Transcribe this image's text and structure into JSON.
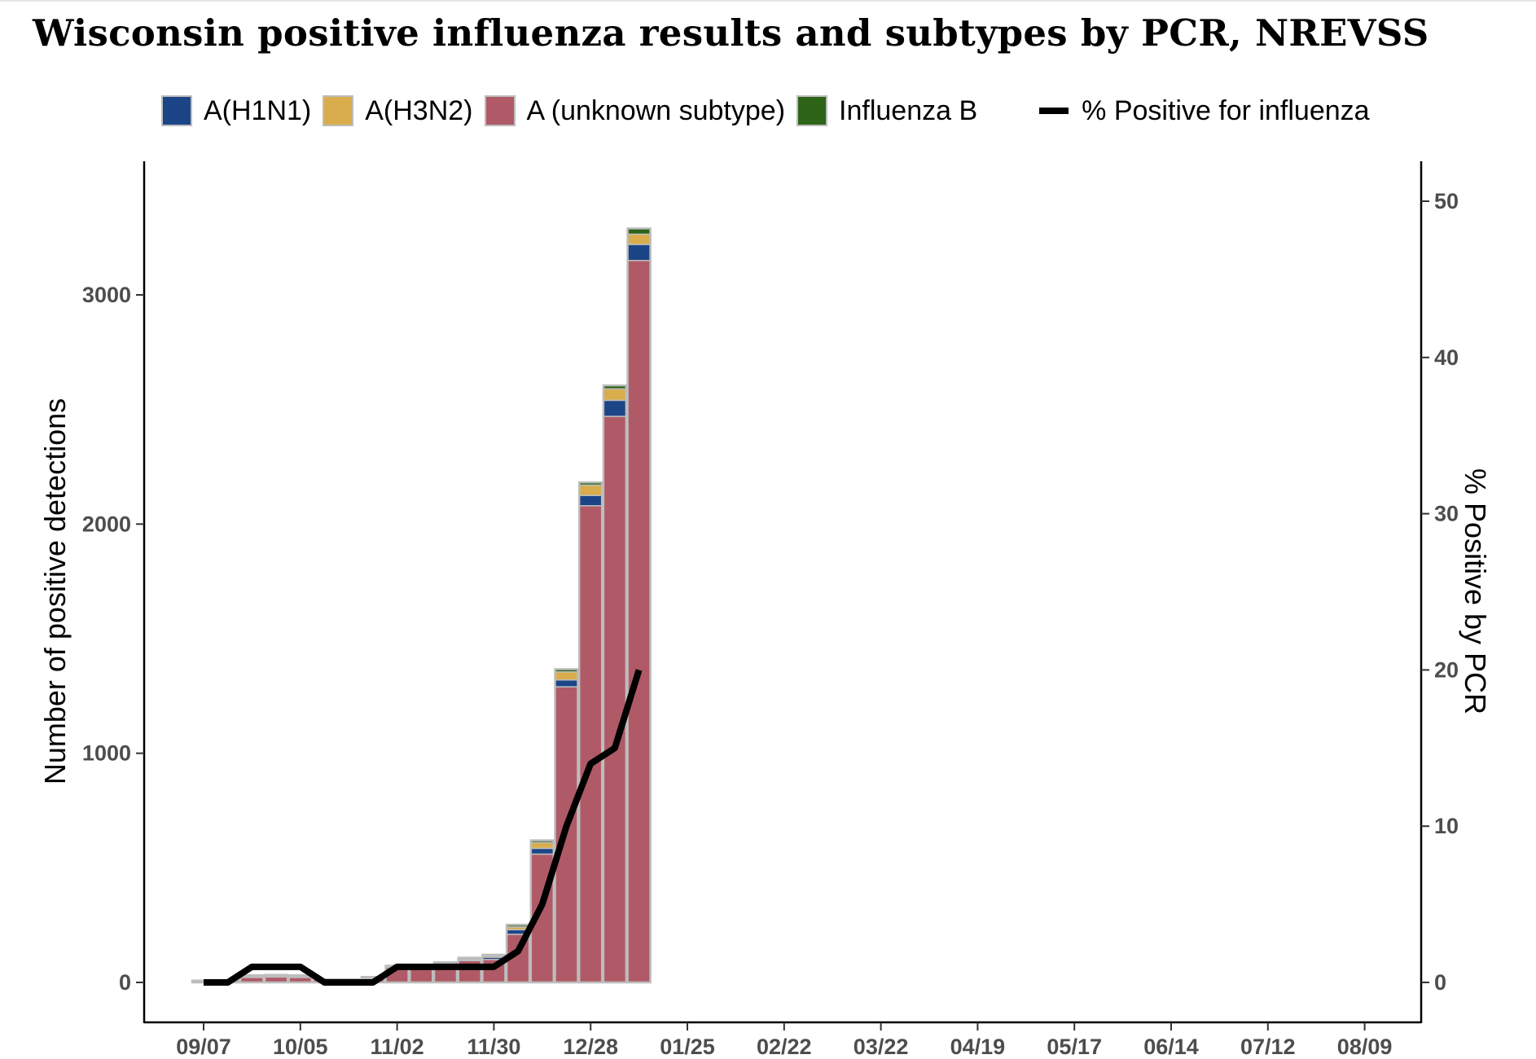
{
  "title": "Wisconsin positive influenza results and subtypes by PCR, NREVSS",
  "legend": {
    "items": [
      {
        "label": "A(H1N1)",
        "color": "#1c4587"
      },
      {
        "label": "A(H3N2)",
        "color": "#d9ad4b"
      },
      {
        "label": "A (unknown subtype)",
        "color": "#b05a67"
      },
      {
        "label": "Influenza B",
        "color": "#2d6418"
      }
    ],
    "line_label": "% Positive for influenza"
  },
  "chart_data": {
    "type": "bar",
    "stacked": true,
    "title": "Wisconsin positive influenza results and subtypes by PCR, NREVSS",
    "xlabel": "",
    "ylabel": "Number of positive detections",
    "ylabel_right": "% Positive by PCR",
    "ylim": [
      0,
      3500
    ],
    "ylim_right": [
      0,
      50
    ],
    "yticks": [
      0,
      1000,
      2000,
      3000
    ],
    "yticks_right": [
      0,
      10,
      20,
      30,
      40,
      50
    ],
    "grid": false,
    "legend_position": "top",
    "xtick_labels": [
      "09/07",
      "10/05",
      "11/02",
      "11/30",
      "12/28",
      "01/25",
      "02/22",
      "03/22",
      "04/19",
      "05/17",
      "06/14",
      "07/12",
      "08/09"
    ],
    "n_weeks": 52,
    "colors": {
      "A(H1N1)": "#1c4587",
      "A(H3N2)": "#d9ad4b",
      "A (unknown subtype)": "#b05a67",
      "Influenza B": "#2d6418",
      "border": "#bdbdbd",
      "line": "#000000"
    },
    "series": [
      {
        "name": "A (unknown subtype)",
        "values": [
          8,
          10,
          22,
          24,
          22,
          14,
          14,
          18,
          65,
          65,
          80,
          95,
          100,
          210,
          560,
          1290,
          2080,
          2470,
          3150
        ]
      },
      {
        "name": "A(H1N1)",
        "values": [
          0,
          0,
          3,
          3,
          3,
          0,
          0,
          2,
          3,
          3,
          3,
          5,
          10,
          20,
          25,
          30,
          45,
          70,
          70
        ]
      },
      {
        "name": "A(H3N2)",
        "values": [
          0,
          0,
          3,
          3,
          3,
          0,
          0,
          2,
          3,
          3,
          3,
          5,
          6,
          12,
          25,
          35,
          45,
          50,
          45
        ]
      },
      {
        "name": "Influenza B",
        "values": [
          0,
          0,
          3,
          3,
          3,
          0,
          0,
          2,
          2,
          2,
          2,
          3,
          5,
          10,
          10,
          12,
          12,
          15,
          25
        ]
      }
    ],
    "line": {
      "name": "% Positive for influenza",
      "values": [
        0,
        0,
        1,
        1,
        1,
        0,
        0,
        0,
        1,
        1,
        1,
        1,
        1,
        2,
        5,
        10,
        14,
        15,
        20
      ]
    }
  }
}
